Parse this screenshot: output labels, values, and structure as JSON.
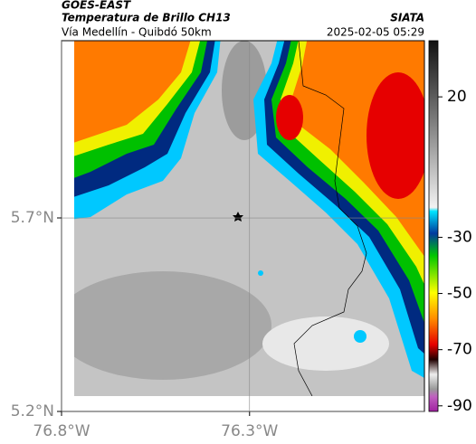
{
  "header": {
    "satellite": "GOES-EAST",
    "product": "Temperatura de Brillo CH13",
    "source": "SIATA",
    "route": "Vía Medellín - Quibdó 50km",
    "datetime": "2025-02-05 05:29"
  },
  "map": {
    "xlim": [
      -76.8,
      -75.835
    ],
    "ylim": [
      5.2,
      6.158
    ],
    "xticks": [
      {
        "value": -76.8,
        "label": "76.8°W"
      },
      {
        "value": -76.3,
        "label": "76.3°W"
      }
    ],
    "yticks": [
      {
        "value": 5.7,
        "label": "5.7°N"
      },
      {
        "value": 5.2,
        "label": "5.2°N"
      }
    ]
  },
  "colorbar": {
    "lim": [
      40,
      -92
    ],
    "ticks": [
      20,
      -30,
      -50,
      -70,
      -90
    ]
  }
}
